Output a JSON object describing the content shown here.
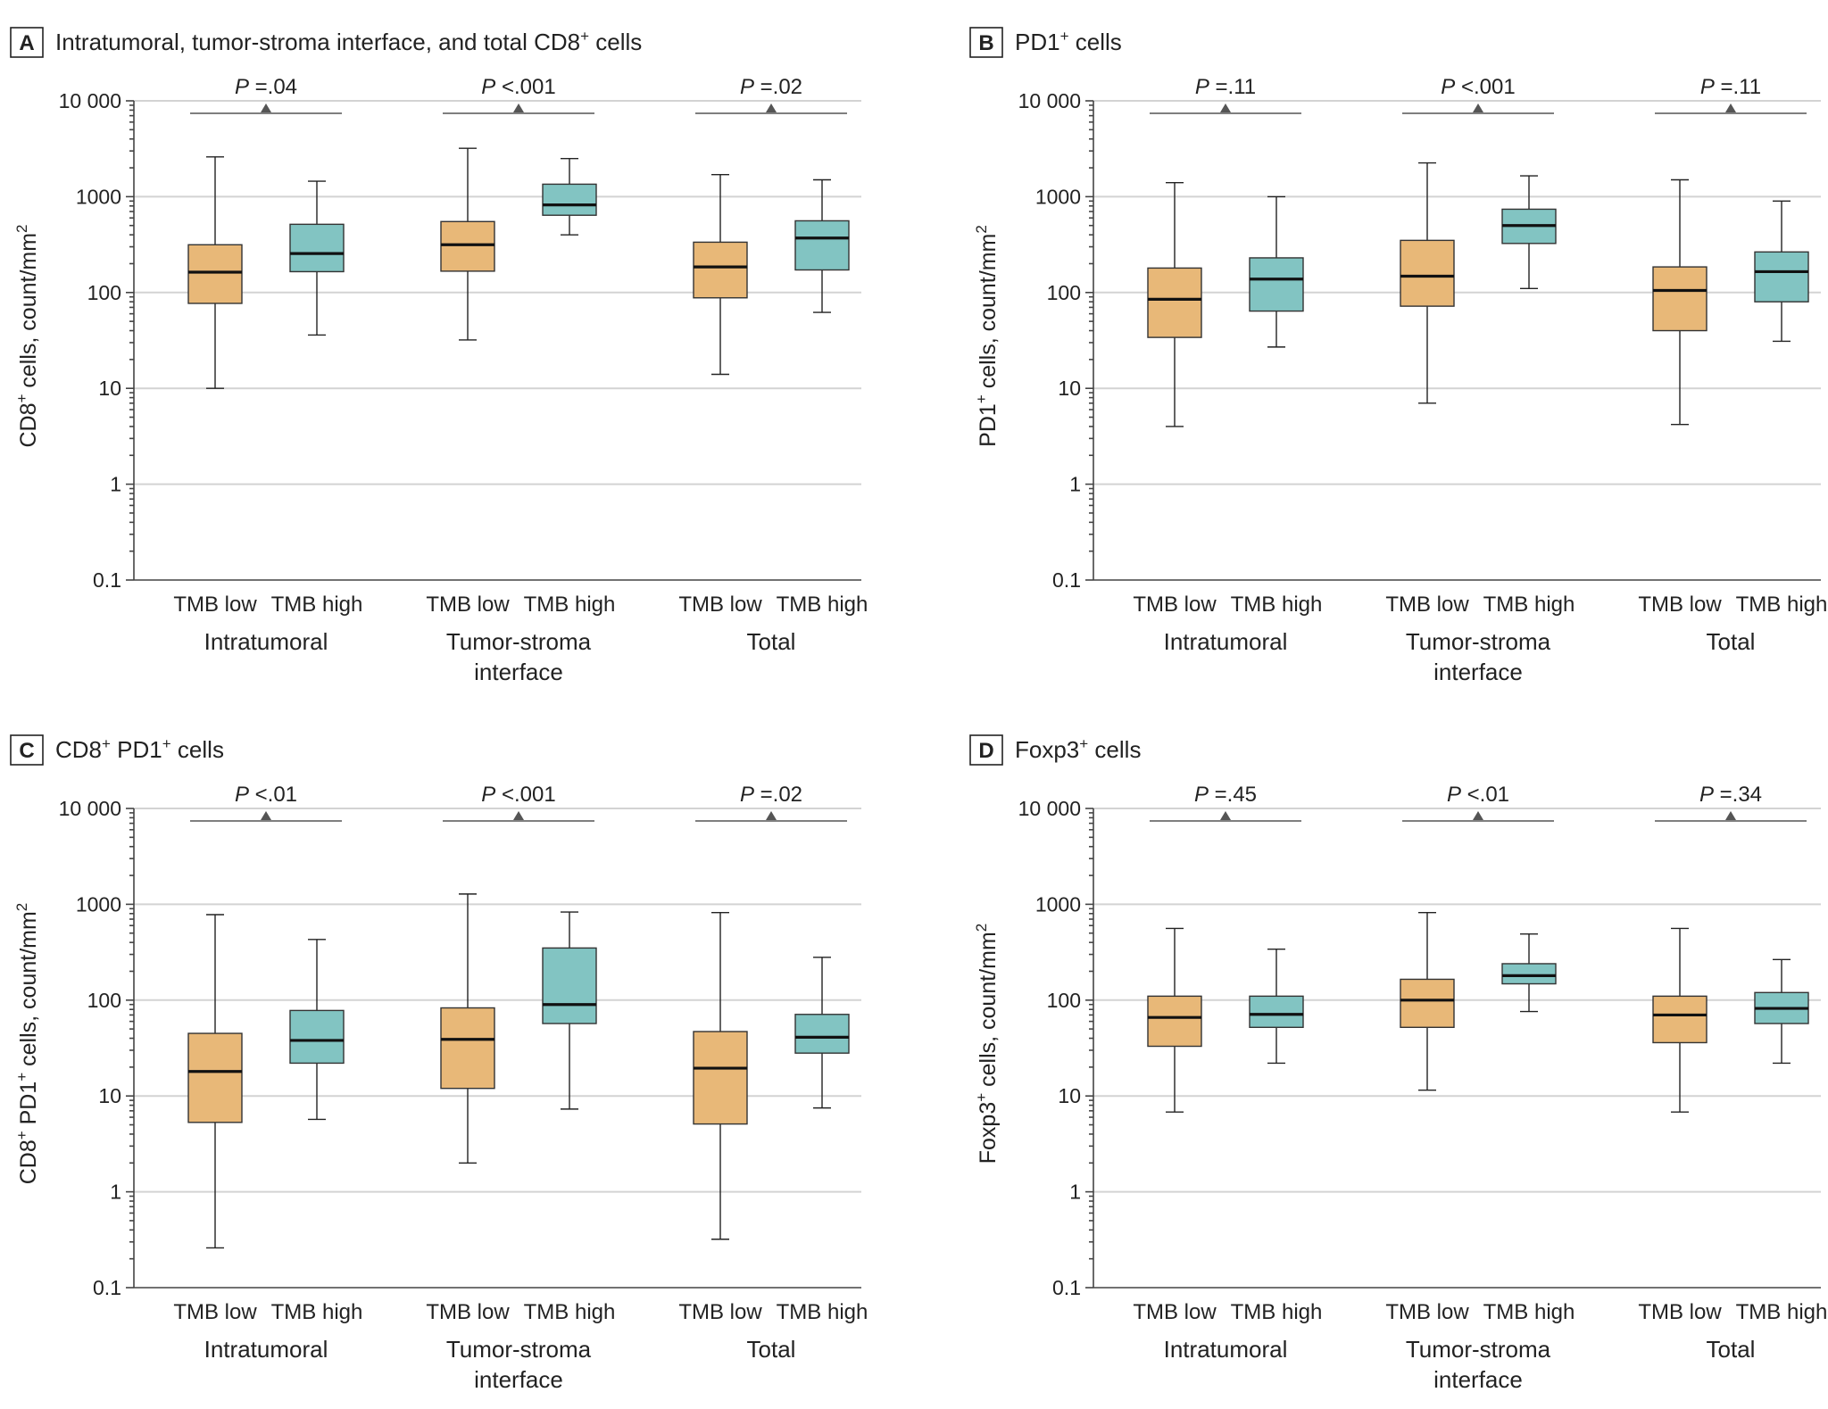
{
  "figure": {
    "colors": {
      "tmb_low": "#E8B878",
      "tmb_high": "#82C4C2"
    },
    "category_labels": [
      "TMB low",
      "TMB high"
    ],
    "y_ticks": [
      "0.1",
      "1",
      "10",
      "100",
      "1000",
      "10 000"
    ]
  },
  "chart_data": [
    {
      "type": "boxplot",
      "panel": "A",
      "title": "Intratumoral, tumor-stroma interface, and total CD8",
      "title_sup": "+",
      "title_suffix": " cells",
      "ylabel": "CD8",
      "ylabel_sup": "+",
      "ylabel_mid": " cells, count/mm",
      "ylabel_sup2": "2",
      "yscale": "log",
      "ylim": [
        0.1,
        10000
      ],
      "groups": [
        {
          "name_lines": [
            "Intratumoral"
          ],
          "p_prefix": "P",
          "p_value": " =.04",
          "boxes": [
            {
              "category": "TMB low",
              "whisker_low": 10,
              "q1": 77,
              "median": 163,
              "q3": 315,
              "whisker_high": 2600
            },
            {
              "category": "TMB high",
              "whisker_low": 36,
              "q1": 165,
              "median": 255,
              "q3": 515,
              "whisker_high": 1450
            }
          ]
        },
        {
          "name_lines": [
            "Tumor-stroma",
            "interface"
          ],
          "p_prefix": "P",
          "p_value": " <.001",
          "boxes": [
            {
              "category": "TMB low",
              "whisker_low": 32,
              "q1": 167,
              "median": 315,
              "q3": 550,
              "whisker_high": 3200
            },
            {
              "category": "TMB high",
              "whisker_low": 400,
              "q1": 640,
              "median": 820,
              "q3": 1350,
              "whisker_high": 2500
            }
          ]
        },
        {
          "name_lines": [
            "Total"
          ],
          "p_prefix": "P",
          "p_value": " =.02",
          "boxes": [
            {
              "category": "TMB low",
              "whisker_low": 14,
              "q1": 88,
              "median": 185,
              "q3": 335,
              "whisker_high": 1700
            },
            {
              "category": "TMB high",
              "whisker_low": 62,
              "q1": 172,
              "median": 370,
              "q3": 560,
              "whisker_high": 1500
            }
          ]
        }
      ]
    },
    {
      "type": "boxplot",
      "panel": "B",
      "title": "PD1",
      "title_sup": "+",
      "title_suffix": " cells",
      "ylabel": "PD1",
      "ylabel_sup": "+",
      "ylabel_mid": " cells, count/mm",
      "ylabel_sup2": "2",
      "yscale": "log",
      "ylim": [
        0.1,
        10000
      ],
      "groups": [
        {
          "name_lines": [
            "Intratumoral"
          ],
          "p_prefix": "P",
          "p_value": " =.11",
          "boxes": [
            {
              "category": "TMB low",
              "whisker_low": 4,
              "q1": 34,
              "median": 85,
              "q3": 180,
              "whisker_high": 1400
            },
            {
              "category": "TMB high",
              "whisker_low": 27,
              "q1": 64,
              "median": 138,
              "q3": 230,
              "whisker_high": 1000
            }
          ]
        },
        {
          "name_lines": [
            "Tumor-stroma",
            "interface"
          ],
          "p_prefix": "P",
          "p_value": " <.001",
          "boxes": [
            {
              "category": "TMB low",
              "whisker_low": 7,
              "q1": 72,
              "median": 148,
              "q3": 350,
              "whisker_high": 2250
            },
            {
              "category": "TMB high",
              "whisker_low": 110,
              "q1": 325,
              "median": 500,
              "q3": 740,
              "whisker_high": 1650
            }
          ]
        },
        {
          "name_lines": [
            "Total"
          ],
          "p_prefix": "P",
          "p_value": " =.11",
          "boxes": [
            {
              "category": "TMB low",
              "whisker_low": 4.2,
              "q1": 40,
              "median": 105,
              "q3": 185,
              "whisker_high": 1500
            },
            {
              "category": "TMB high",
              "whisker_low": 31,
              "q1": 80,
              "median": 165,
              "q3": 265,
              "whisker_high": 900
            }
          ]
        }
      ]
    },
    {
      "type": "boxplot",
      "panel": "C",
      "title": "CD8",
      "title_sup": "+",
      "title_suffix": " PD1",
      "title_sup2": "+",
      "title_suffix2": " cells",
      "ylabel": "CD8",
      "ylabel_sup": "+",
      "ylabel_mid": " PD1",
      "ylabel_sup_mid": "+",
      "ylabel_mid2": " cells, count/mm",
      "ylabel_sup2": "2",
      "yscale": "log",
      "ylim": [
        0.1,
        10000
      ],
      "groups": [
        {
          "name_lines": [
            "Intratumoral"
          ],
          "p_prefix": "P",
          "p_value": " <.01",
          "boxes": [
            {
              "category": "TMB low",
              "whisker_low": 0.26,
              "q1": 5.3,
              "median": 18,
              "q3": 45,
              "whisker_high": 780
            },
            {
              "category": "TMB high",
              "whisker_low": 5.7,
              "q1": 22,
              "median": 38,
              "q3": 78,
              "whisker_high": 430
            }
          ]
        },
        {
          "name_lines": [
            "Tumor-stroma",
            "interface"
          ],
          "p_prefix": "P",
          "p_value": " <.001",
          "boxes": [
            {
              "category": "TMB low",
              "whisker_low": 2,
              "q1": 12,
              "median": 39,
              "q3": 83,
              "whisker_high": 1280
            },
            {
              "category": "TMB high",
              "whisker_low": 7.3,
              "q1": 57,
              "median": 90,
              "q3": 350,
              "whisker_high": 830
            }
          ]
        },
        {
          "name_lines": [
            "Total"
          ],
          "p_prefix": "P",
          "p_value": " =.02",
          "boxes": [
            {
              "category": "TMB low",
              "whisker_low": 0.32,
              "q1": 5.1,
              "median": 19.5,
              "q3": 47,
              "whisker_high": 820
            },
            {
              "category": "TMB high",
              "whisker_low": 7.5,
              "q1": 28,
              "median": 41,
              "q3": 71,
              "whisker_high": 280
            }
          ]
        }
      ]
    },
    {
      "type": "boxplot",
      "panel": "D",
      "title": "Foxp3",
      "title_sup": "+",
      "title_suffix": " cells",
      "ylabel": "Foxp3",
      "ylabel_sup": "+",
      "ylabel_mid": " cells, count/mm",
      "ylabel_sup2": "2",
      "yscale": "log",
      "ylim": [
        0.1,
        10000
      ],
      "groups": [
        {
          "name_lines": [
            "Intratumoral"
          ],
          "p_prefix": "P",
          "p_value": " =.45",
          "boxes": [
            {
              "category": "TMB low",
              "whisker_low": 6.8,
              "q1": 33,
              "median": 66,
              "q3": 110,
              "whisker_high": 560
            },
            {
              "category": "TMB high",
              "whisker_low": 22,
              "q1": 52,
              "median": 71,
              "q3": 110,
              "whisker_high": 340
            }
          ]
        },
        {
          "name_lines": [
            "Tumor-stroma",
            "interface"
          ],
          "p_prefix": "P",
          "p_value": " <.01",
          "boxes": [
            {
              "category": "TMB low",
              "whisker_low": 11.5,
              "q1": 52,
              "median": 100,
              "q3": 165,
              "whisker_high": 820
            },
            {
              "category": "TMB high",
              "whisker_low": 76,
              "q1": 148,
              "median": 180,
              "q3": 240,
              "whisker_high": 490
            }
          ]
        },
        {
          "name_lines": [
            "Total"
          ],
          "p_prefix": "P",
          "p_value": " =.34",
          "boxes": [
            {
              "category": "TMB low",
              "whisker_low": 6.8,
              "q1": 36,
              "median": 70,
              "q3": 110,
              "whisker_high": 560
            },
            {
              "category": "TMB high",
              "whisker_low": 22,
              "q1": 57,
              "median": 82,
              "q3": 120,
              "whisker_high": 265
            }
          ]
        }
      ]
    }
  ]
}
